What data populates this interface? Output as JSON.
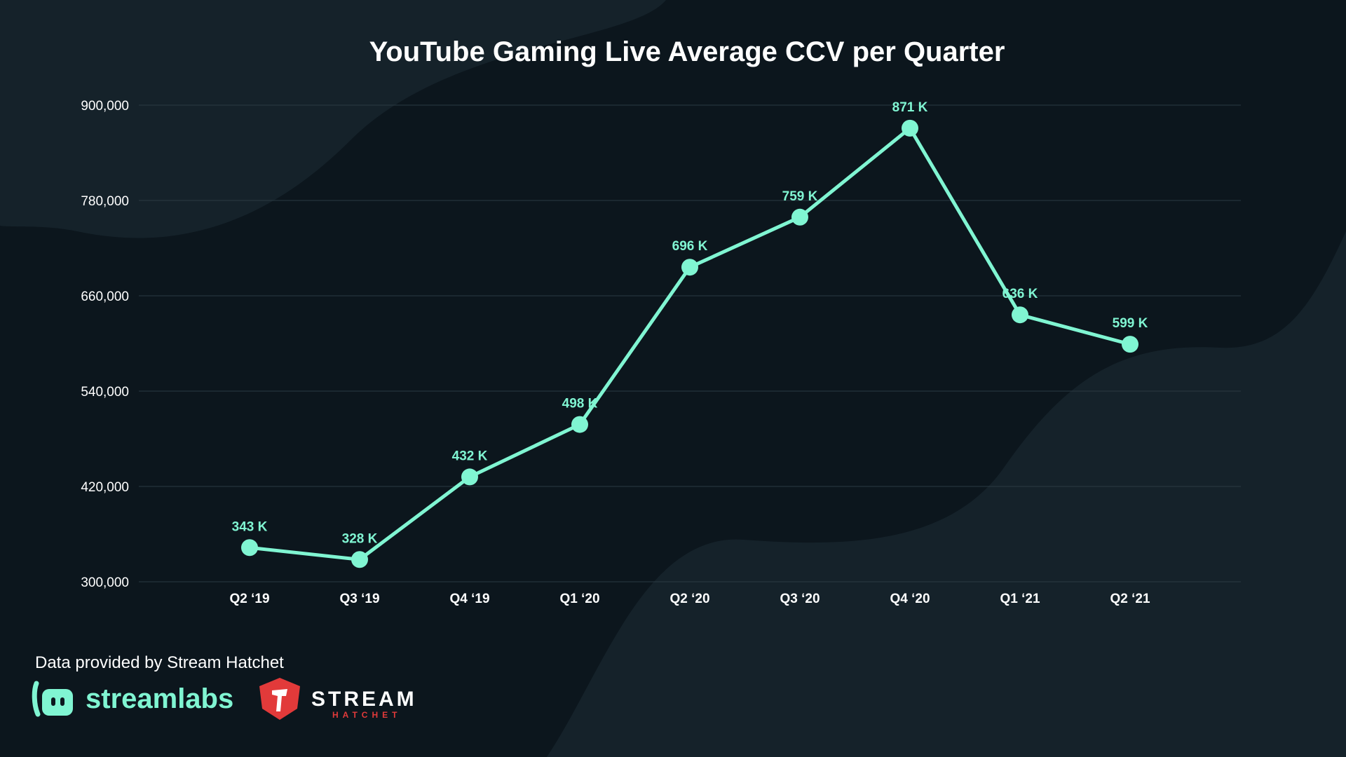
{
  "chart_data": {
    "type": "line",
    "title": "YouTube Gaming Live Average CCV per Quarter",
    "categories": [
      "Q2 ‘19",
      "Q3 ‘19",
      "Q4 ‘19",
      "Q1 ‘20",
      "Q2 ‘20",
      "Q3 ‘20",
      "Q4 ‘20",
      "Q1 ‘21",
      "Q2 ‘21"
    ],
    "values": [
      343000,
      328000,
      432000,
      498000,
      696000,
      759000,
      871000,
      636000,
      599000
    ],
    "data_labels": [
      "343 K",
      "328 K",
      "432 K",
      "498 K",
      "696 K",
      "759 K",
      "871 K",
      "636 K",
      "599 K"
    ],
    "y_ticks": [
      300000,
      420000,
      540000,
      660000,
      780000,
      900000
    ],
    "y_tick_labels": [
      "300,000",
      "420,000",
      "540,000",
      "660,000",
      "780,000",
      "900,000"
    ],
    "ylim": [
      300000,
      900000
    ],
    "grid": true,
    "legend": "none"
  },
  "colors": {
    "background": "#0c161d",
    "background_shape": "#15222a",
    "line": "#80f5d2",
    "grid": "#2a3942",
    "text": "#ffffff",
    "label": "#80f5d2",
    "hatchet_red": "#e23a3a"
  },
  "footer": {
    "credit": "Data provided by Stream Hatchet",
    "streamlabs_logo": "streamlabs",
    "hatchet_logo_line1": "STREAM",
    "hatchet_logo_line2": "HATCHET"
  }
}
